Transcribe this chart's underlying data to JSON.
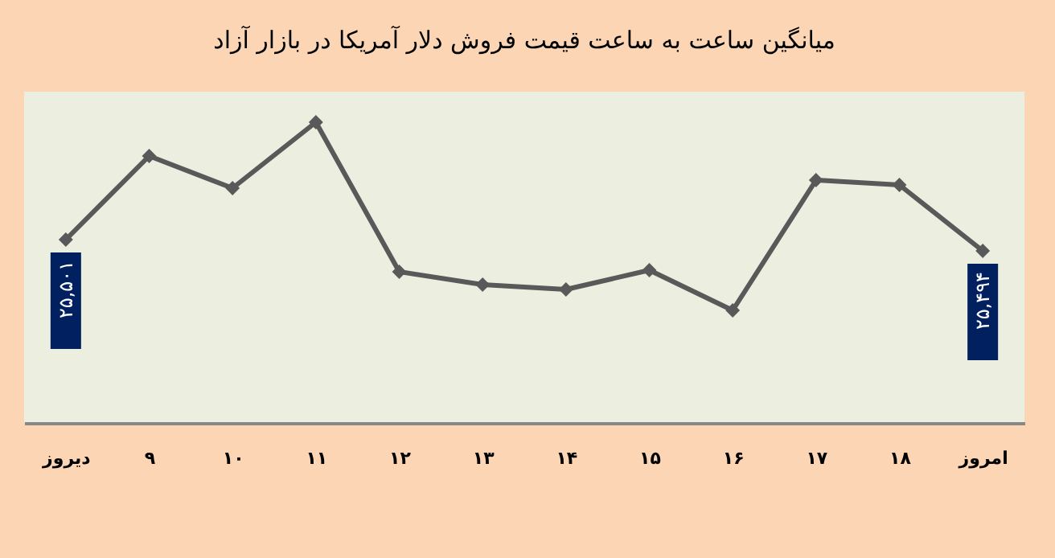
{
  "chart_data": {
    "type": "line",
    "title": "میانگین ساعت به ساعت قیمت فروش دلار آمریکا در بازار آزاد",
    "categories": [
      "دیروز",
      "۹",
      "۱۰",
      "۱۱",
      "۱۲",
      "۱۳",
      "۱۴",
      "۱۵",
      "۱۶",
      "۱۷",
      "۱۸",
      "امروز"
    ],
    "ylim": [
      25387,
      25593
    ],
    "series": [
      {
        "color": "#595959",
        "values": [
          25501,
          25553,
          25533,
          25574,
          25481,
          25473,
          25470,
          25482,
          25457,
          25538,
          25535,
          25494
        ],
        "value_labels": [
          "۲۵,۵۰۱",
          null,
          null,
          null,
          null,
          null,
          null,
          null,
          null,
          null,
          null,
          "۲۵,۴۹۴"
        ]
      }
    ],
    "marker": "diamond",
    "grid": false,
    "legend": false
  }
}
